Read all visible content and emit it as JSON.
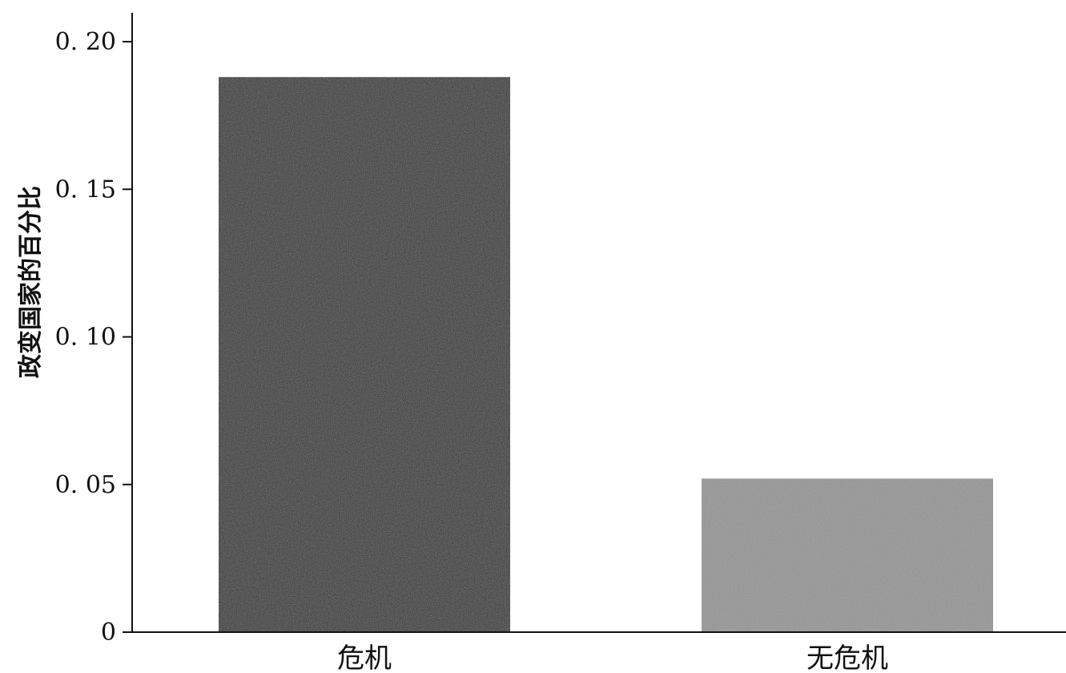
{
  "chart_data": {
    "type": "bar",
    "title": "",
    "xlabel": "",
    "ylabel": "政变国家的百分比",
    "categories": [
      "危机",
      "无危机"
    ],
    "values": [
      0.188,
      0.052
    ],
    "ylim": [
      0,
      0.21
    ],
    "yticks": [
      0,
      0.05,
      0.1,
      0.15,
      0.2
    ],
    "ytick_labels": [
      "0",
      "0. 05",
      "0. 10",
      "0. 15",
      "0. 20"
    ],
    "colors": [
      "#1c1c1c",
      "#8c8c8c"
    ],
    "grid": false,
    "legend": "none"
  }
}
